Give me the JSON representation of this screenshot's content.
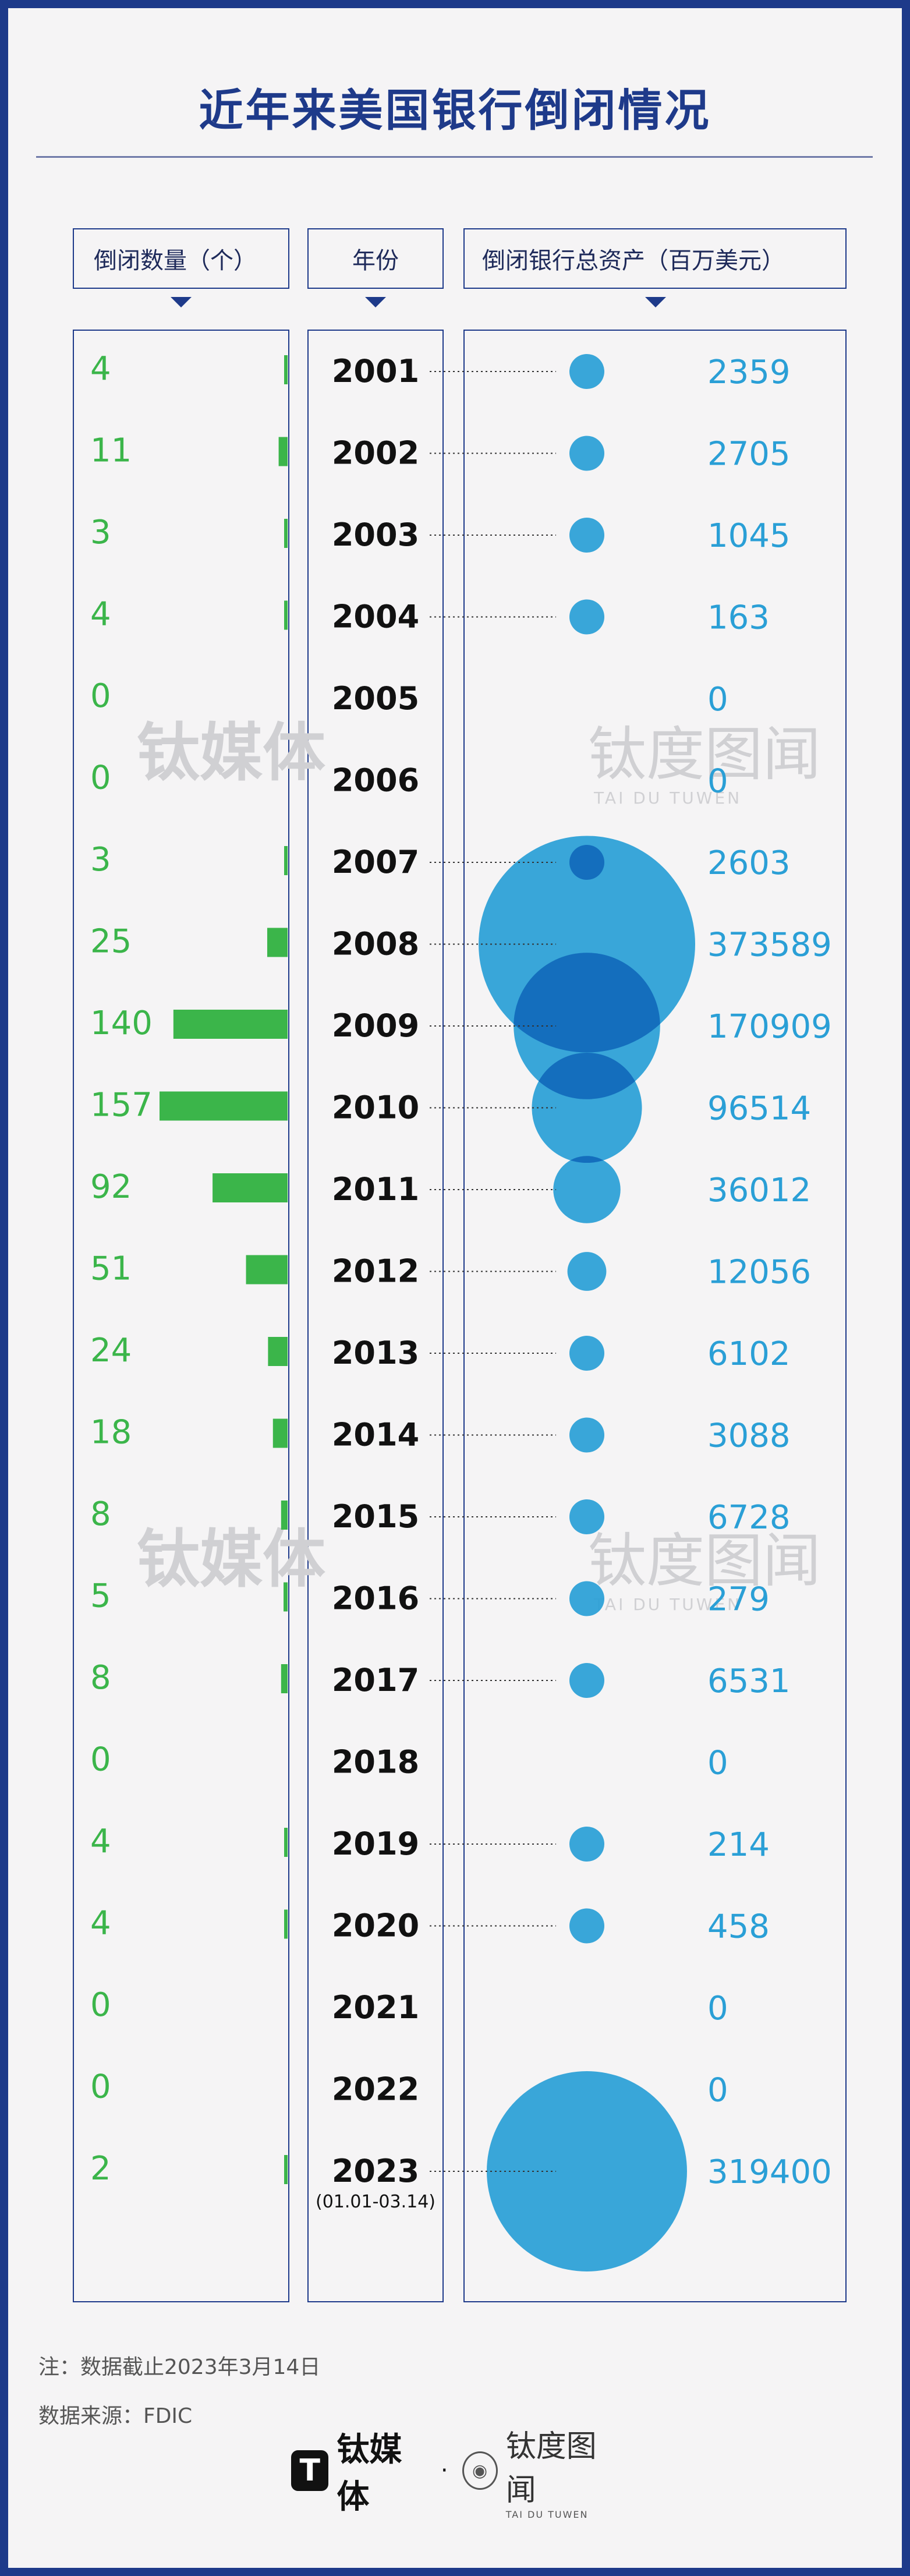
{
  "title": "近年来美国银行倒闭情况",
  "headers": {
    "count": "倒闭数量（个）",
    "year": "年份",
    "assets": "倒闭银行总资产（百万美元）"
  },
  "watermark": {
    "left": "钛媒体",
    "right": "钛度图闻",
    "right_sub": "TAI DU TUWEN"
  },
  "chart_data": {
    "type": "bar",
    "categories": [
      "2001",
      "2002",
      "2003",
      "2004",
      "2005",
      "2006",
      "2007",
      "2008",
      "2009",
      "2010",
      "2011",
      "2012",
      "2013",
      "2014",
      "2015",
      "2016",
      "2017",
      "2018",
      "2019",
      "2020",
      "2021",
      "2022",
      "2023"
    ],
    "category_note": {
      "2023": "(01.01-03.14)"
    },
    "series": [
      {
        "name": "倒闭数量（个）",
        "values": [
          4,
          11,
          3,
          4,
          0,
          0,
          3,
          25,
          140,
          157,
          92,
          51,
          24,
          18,
          8,
          5,
          8,
          0,
          4,
          4,
          0,
          0,
          2
        ]
      },
      {
        "name": "倒闭银行总资产（百万美元）",
        "values": [
          2359,
          2705,
          1045,
          163,
          0,
          0,
          2603,
          373589,
          170909,
          96514,
          36012,
          12056,
          6102,
          3088,
          6728,
          279,
          6531,
          0,
          214,
          458,
          0,
          0,
          319400
        ]
      }
    ],
    "colors": {
      "count": "#3bb54a",
      "assets": "#2a9fd6",
      "bubble_overlap": "#1065b8",
      "frame": "#1e3a8a"
    }
  },
  "notes": {
    "cutoff": "注：数据截止2023年3月14日",
    "source": "数据来源：FDIC"
  },
  "footer": {
    "brand1": "钛媒体",
    "separator": "·",
    "brand2": "钛度图闻",
    "brand2_sub": "TAI DU TUWEN"
  }
}
